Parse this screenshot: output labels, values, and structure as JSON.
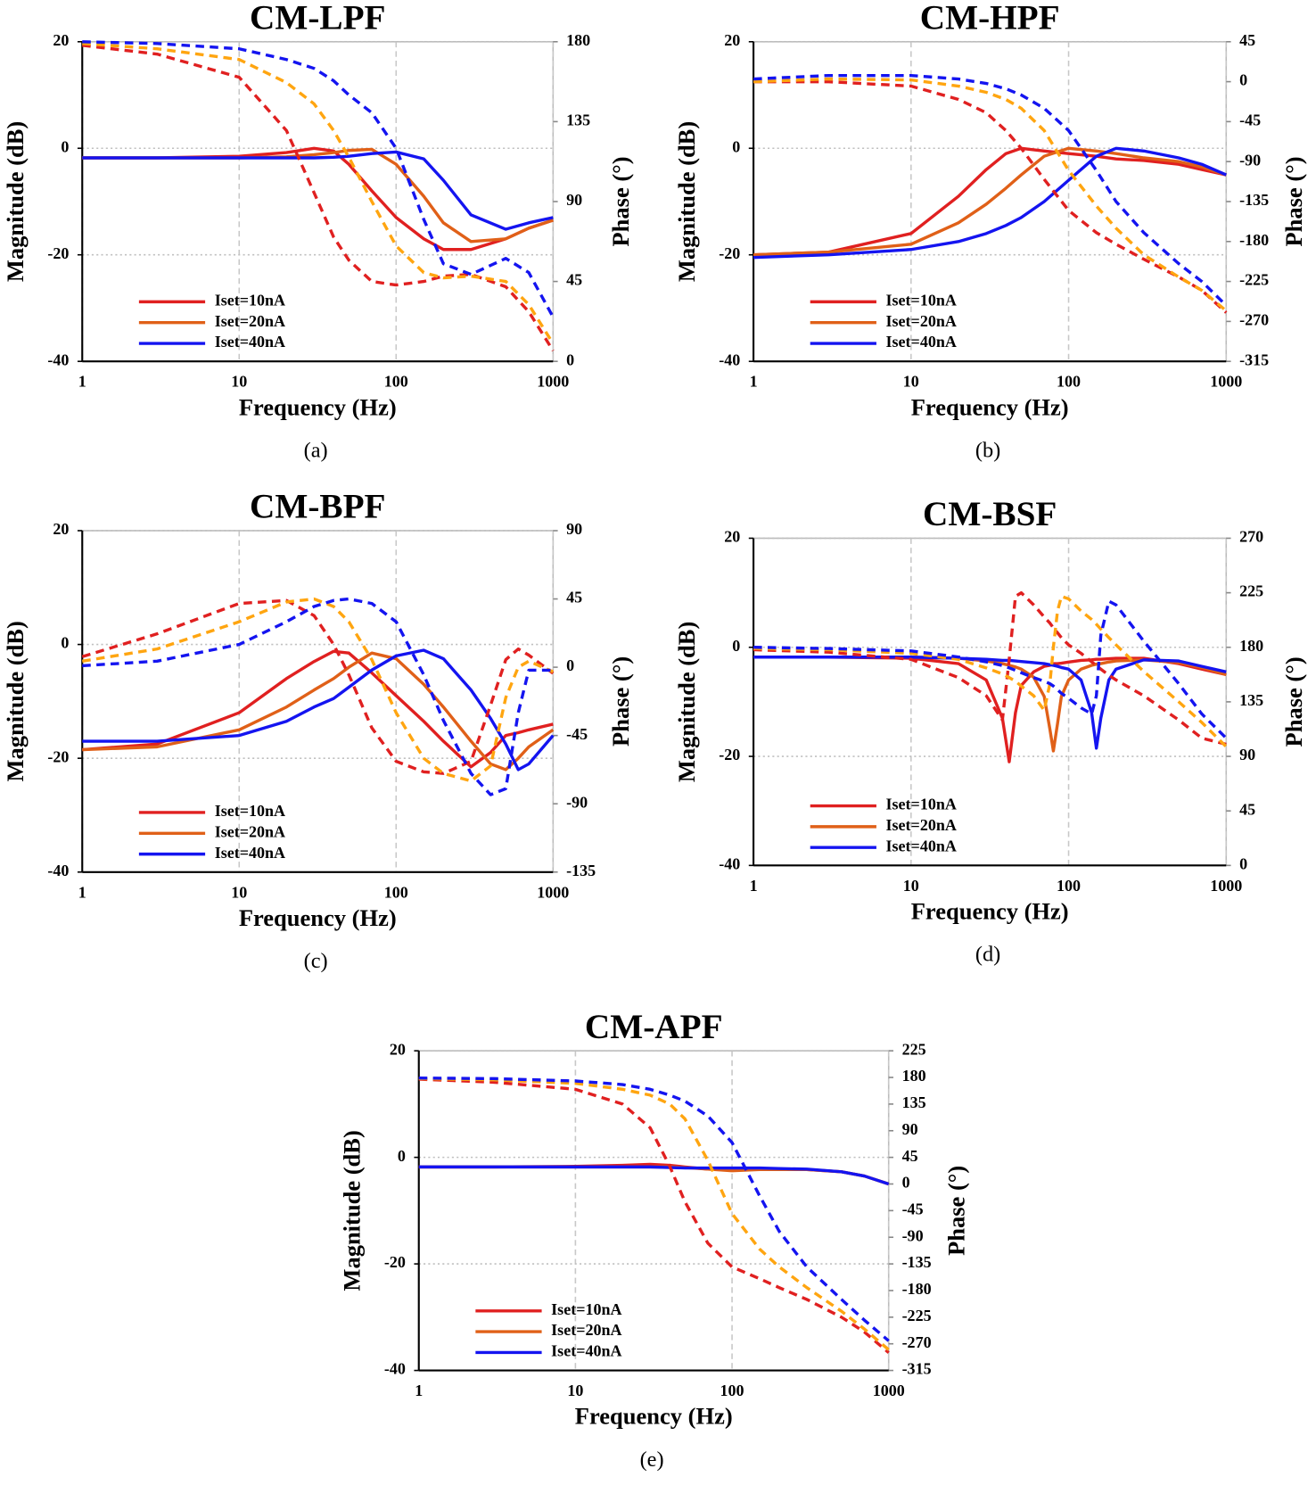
{
  "chart_data": [
    {
      "type": "line",
      "title": "CM-LPF",
      "caption": "(a)",
      "xlabel": "Frequency (Hz)",
      "ylabel": "Magnitude (dB)",
      "y2label": "Phase (°)",
      "xscale": "log",
      "xlim": [
        1,
        1000
      ],
      "xticks": [
        1,
        10,
        100,
        1000
      ],
      "ylim": [
        -40,
        20
      ],
      "yticks": [
        -40,
        -20,
        0,
        20
      ],
      "y2lim": [
        0,
        180
      ],
      "y2ticks": [
        0,
        45,
        90,
        135,
        180
      ],
      "grid": true,
      "legend": "lower left",
      "x": [
        1,
        3,
        10,
        20,
        30,
        40,
        50,
        70,
        100,
        150,
        200,
        300,
        500,
        700,
        1000
      ],
      "series": [
        {
          "name": "Iset=10nA",
          "color": "#e02020",
          "style": "solid",
          "values": [
            -1.8,
            -1.8,
            -1.5,
            -0.8,
            0,
            -0.5,
            -3,
            -8,
            -13,
            -17,
            -19,
            -19,
            -17,
            -15,
            -13.5
          ]
        },
        {
          "name": "Iset=20nA",
          "color": "#e06018",
          "style": "solid",
          "values": [
            -1.8,
            -1.8,
            -1.8,
            -1.6,
            -1.2,
            -0.8,
            -0.4,
            -0.2,
            -3,
            -9,
            -14,
            -17.5,
            -17,
            -15,
            -13.5
          ]
        },
        {
          "name": "Iset=40nA",
          "color": "#1414f0",
          "style": "solid",
          "values": [
            -1.8,
            -1.8,
            -1.8,
            -1.8,
            -1.8,
            -1.7,
            -1.5,
            -1,
            -0.7,
            -2,
            -6,
            -12.5,
            -15.2,
            -14,
            -13
          ]
        },
        {
          "color": "#e02020",
          "style": "dashed",
          "axis": "y2",
          "values": [
            178,
            173,
            160,
            130,
            95,
            70,
            57,
            45,
            43,
            45,
            48,
            49,
            42,
            28,
            6
          ]
        },
        {
          "color": "#ffa510",
          "style": "dashed",
          "axis": "y2",
          "values": [
            179,
            176,
            170,
            157,
            145,
            130,
            115,
            90,
            65,
            50,
            47,
            48,
            45,
            32,
            10
          ]
        },
        {
          "color": "#1414f0",
          "style": "dashed",
          "axis": "y2",
          "values": [
            180,
            179,
            176,
            170,
            165,
            158,
            150,
            140,
            120,
            80,
            55,
            49,
            58,
            50,
            25
          ]
        }
      ]
    },
    {
      "type": "line",
      "title": "CM-HPF",
      "caption": "(b)",
      "xlabel": "Frequency (Hz)",
      "ylabel": "Magnitude (dB)",
      "y2label": "Phase (°)",
      "xscale": "log",
      "xlim": [
        1,
        1000
      ],
      "xticks": [
        1,
        10,
        100,
        1000
      ],
      "ylim": [
        -40,
        20
      ],
      "yticks": [
        -40,
        -20,
        0,
        20
      ],
      "y2lim": [
        -315,
        45
      ],
      "y2ticks": [
        -315,
        -270,
        -225,
        -180,
        -135,
        -90,
        -45,
        0,
        45
      ],
      "grid": true,
      "legend": "lower left",
      "x": [
        1,
        3,
        10,
        20,
        30,
        40,
        50,
        70,
        100,
        150,
        200,
        300,
        500,
        700,
        1000
      ],
      "series": [
        {
          "name": "Iset=10nA",
          "color": "#e02020",
          "style": "solid",
          "values": [
            -20,
            -19.5,
            -16,
            -9,
            -4,
            -1,
            0,
            -0.5,
            -1,
            -1.5,
            -2,
            -2.3,
            -3,
            -4,
            -5
          ]
        },
        {
          "name": "Iset=20nA",
          "color": "#e06018",
          "style": "solid",
          "values": [
            -20,
            -19.5,
            -18,
            -14,
            -10.5,
            -7.5,
            -5,
            -1.5,
            0,
            -0.5,
            -1,
            -1.8,
            -2.5,
            -3.5,
            -5
          ]
        },
        {
          "name": "Iset=40nA",
          "color": "#1414f0",
          "style": "solid",
          "values": [
            -20.5,
            -20,
            -19,
            -17.5,
            -16,
            -14.5,
            -13,
            -10,
            -6,
            -1.5,
            0,
            -0.5,
            -1.8,
            -3,
            -5
          ]
        },
        {
          "color": "#e02020",
          "style": "dashed",
          "axis": "y2",
          "values": [
            0,
            0,
            -5,
            -20,
            -35,
            -55,
            -75,
            -110,
            -145,
            -170,
            -183,
            -200,
            -220,
            -235,
            -260
          ]
        },
        {
          "color": "#ffa510",
          "style": "dashed",
          "axis": "y2",
          "values": [
            0,
            3,
            2,
            -5,
            -12,
            -20,
            -30,
            -55,
            -100,
            -140,
            -165,
            -195,
            -220,
            -235,
            -258
          ]
        },
        {
          "color": "#1414f0",
          "style": "dashed",
          "axis": "y2",
          "values": [
            3,
            7,
            7,
            3,
            -2,
            -8,
            -15,
            -30,
            -55,
            -100,
            -135,
            -170,
            -205,
            -225,
            -252
          ]
        }
      ]
    },
    {
      "type": "line",
      "title": "CM-BPF",
      "caption": "(c)",
      "xlabel": "Frequency (Hz)",
      "ylabel": "Magnitude (dB)",
      "y2label": "Phase (°)",
      "xscale": "log",
      "xlim": [
        1,
        1000
      ],
      "xticks": [
        1,
        10,
        100,
        1000
      ],
      "ylim": [
        -40,
        20
      ],
      "yticks": [
        -40,
        -20,
        0,
        20
      ],
      "y2lim": [
        -135,
        90
      ],
      "y2ticks": [
        -135,
        -90,
        -45,
        0,
        45,
        90
      ],
      "grid": true,
      "legend": "lower left",
      "x": [
        1,
        3,
        10,
        20,
        30,
        40,
        50,
        70,
        100,
        150,
        200,
        300,
        400,
        500,
        600,
        700,
        1000
      ],
      "series": [
        {
          "name": "Iset=10nA",
          "color": "#e02020",
          "style": "solid",
          "values": [
            -18.5,
            -17.5,
            -12,
            -6,
            -3,
            -1.2,
            -1.5,
            -5,
            -9,
            -13.5,
            -17,
            -21.5,
            -19,
            -16,
            -15.5,
            -15,
            -14
          ]
        },
        {
          "name": "Iset=20nA",
          "color": "#e06018",
          "style": "solid",
          "values": [
            -18.5,
            -18,
            -15,
            -11,
            -8,
            -6,
            -4,
            -1.5,
            -2.5,
            -7,
            -11,
            -17,
            -21,
            -22,
            -20,
            -18,
            -15
          ]
        },
        {
          "name": "Iset=40nA",
          "color": "#1414f0",
          "style": "solid",
          "values": [
            -17,
            -17,
            -16,
            -13.5,
            -11,
            -9.5,
            -7.5,
            -4.5,
            -2,
            -1,
            -2.5,
            -8,
            -13,
            -17.5,
            -22,
            -21,
            -16
          ]
        },
        {
          "color": "#e02020",
          "style": "dashed",
          "axis": "y2",
          "values": [
            7,
            22,
            42,
            44,
            34,
            15,
            -5,
            -40,
            -62,
            -69,
            -70,
            -62,
            -25,
            5,
            12,
            8,
            -4
          ]
        },
        {
          "color": "#ffa510",
          "style": "dashed",
          "axis": "y2",
          "values": [
            4,
            12,
            30,
            43,
            45,
            40,
            30,
            5,
            -30,
            -60,
            -70,
            -75,
            -65,
            -20,
            0,
            4,
            -3
          ]
        },
        {
          "color": "#1414f0",
          "style": "dashed",
          "axis": "y2",
          "values": [
            1,
            4,
            15,
            30,
            40,
            44,
            45,
            42,
            30,
            -5,
            -35,
            -70,
            -84,
            -80,
            -30,
            -2,
            -2
          ]
        }
      ]
    },
    {
      "type": "line",
      "title": "CM-BSF",
      "caption": "(d)",
      "xlabel": "Frequency (Hz)",
      "ylabel": "Magnitude (dB)",
      "y2label": "Phase (°)",
      "xscale": "log",
      "xlim": [
        1,
        1000
      ],
      "xticks": [
        1,
        10,
        100,
        1000
      ],
      "ylim": [
        -40,
        20
      ],
      "yticks": [
        -40,
        -20,
        0,
        20
      ],
      "y2lim": [
        0,
        270
      ],
      "y2ticks": [
        0,
        45,
        90,
        135,
        180,
        225,
        270
      ],
      "grid": true,
      "legend": "lower left",
      "x": [
        1,
        3,
        10,
        20,
        30,
        38,
        42,
        46,
        50,
        60,
        70,
        76,
        80,
        85,
        90,
        100,
        120,
        140,
        150,
        160,
        180,
        200,
        300,
        500,
        700,
        1000
      ],
      "series": [
        {
          "name": "Iset=10nA",
          "color": "#e02020",
          "style": "solid",
          "values": [
            -1.8,
            -1.8,
            -2,
            -3,
            -6,
            -13,
            -21,
            -12,
            -7,
            -4.5,
            -3.5,
            -3.3,
            -3,
            -3,
            -2.9,
            -2.7,
            -2.4,
            -2.3,
            -2.2,
            -2.2,
            -2.1,
            -2,
            -2,
            -3,
            -4,
            -5
          ]
        },
        {
          "name": "Iset=20nA",
          "color": "#e06018",
          "style": "solid",
          "values": [
            -1.8,
            -1.8,
            -1.8,
            -2,
            -2.5,
            -3,
            -3.3,
            -3.6,
            -4,
            -5.5,
            -9,
            -15,
            -19,
            -14,
            -9,
            -6,
            -4,
            -3.3,
            -3.1,
            -3,
            -2.7,
            -2.5,
            -2.3,
            -2.8,
            -3.7,
            -5
          ]
        },
        {
          "name": "Iset=40nA",
          "color": "#1414f0",
          "style": "solid",
          "values": [
            -1.8,
            -1.8,
            -1.8,
            -2,
            -2.2,
            -2.4,
            -2.4,
            -2.5,
            -2.6,
            -2.8,
            -3,
            -3.2,
            -3.3,
            -3.5,
            -3.7,
            -4,
            -6,
            -12,
            -18.5,
            -13,
            -6,
            -4,
            -2.3,
            -2.5,
            -3.5,
            -4.5
          ]
        },
        {
          "color": "#e02020",
          "style": "dashed",
          "axis": "y2",
          "values": [
            178,
            176,
            170,
            155,
            140,
            120,
            170,
            222,
            225,
            215,
            205,
            200,
            196,
            192,
            188,
            182,
            175,
            168,
            165,
            162,
            157,
            153,
            140,
            120,
            105,
            100
          ]
        },
        {
          "color": "#ffa510",
          "style": "dashed",
          "axis": "y2",
          "values": [
            179,
            178,
            175,
            170,
            163,
            158,
            155,
            152,
            148,
            140,
            128,
            150,
            180,
            210,
            222,
            220,
            210,
            203,
            199,
            195,
            188,
            182,
            160,
            135,
            118,
            98
          ]
        },
        {
          "color": "#1414f0",
          "style": "dashed",
          "axis": "y2",
          "values": [
            180,
            179,
            177,
            172,
            168,
            165,
            163,
            161,
            159,
            155,
            152,
            150,
            148,
            145,
            142,
            138,
            130,
            125,
            140,
            190,
            218,
            215,
            185,
            150,
            125,
            105
          ]
        }
      ]
    },
    {
      "type": "line",
      "title": "CM-APF",
      "caption": "(e)",
      "xlabel": "Frequency (Hz)",
      "ylabel": "Magnitude (dB)",
      "y2label": "Phase (°)",
      "xscale": "log",
      "xlim": [
        1,
        1000
      ],
      "xticks": [
        1,
        10,
        100,
        1000
      ],
      "ylim": [
        -40,
        20
      ],
      "yticks": [
        -40,
        -20,
        0,
        20
      ],
      "y2lim": [
        -315,
        225
      ],
      "y2ticks": [
        -315,
        -270,
        -225,
        -180,
        -135,
        -90,
        -45,
        0,
        45,
        90,
        135,
        180,
        225
      ],
      "grid": true,
      "legend": "lower left",
      "x": [
        1,
        3,
        10,
        20,
        30,
        40,
        50,
        70,
        100,
        150,
        200,
        300,
        500,
        700,
        1000
      ],
      "series": [
        {
          "name": "Iset=10nA",
          "color": "#e02020",
          "style": "solid",
          "values": [
            -1.8,
            -1.8,
            -1.7,
            -1.5,
            -1.3,
            -1.5,
            -1.8,
            -2.2,
            -2.3,
            -2.3,
            -2.3,
            -2.3,
            -2.7,
            -3.5,
            -5
          ]
        },
        {
          "name": "Iset=20nA",
          "color": "#e06018",
          "style": "solid",
          "values": [
            -1.8,
            -1.8,
            -1.8,
            -1.8,
            -1.8,
            -1.8,
            -1.9,
            -2.2,
            -2.5,
            -2.3,
            -2.3,
            -2.3,
            -2.7,
            -3.5,
            -5
          ]
        },
        {
          "name": "Iset=40nA",
          "color": "#1414f0",
          "style": "solid",
          "values": [
            -1.8,
            -1.8,
            -1.8,
            -1.8,
            -1.8,
            -1.9,
            -2,
            -2,
            -2,
            -2,
            -2.1,
            -2.2,
            -2.7,
            -3.5,
            -5
          ]
        },
        {
          "color": "#e02020",
          "style": "dashed",
          "axis": "y2",
          "values": [
            177,
            172,
            160,
            135,
            95,
            30,
            -30,
            -100,
            -140,
            -160,
            -175,
            -195,
            -225,
            -250,
            -285
          ]
        },
        {
          "color": "#ffa510",
          "style": "dashed",
          "axis": "y2",
          "values": [
            178,
            176,
            170,
            160,
            150,
            135,
            110,
            40,
            -50,
            -110,
            -140,
            -175,
            -215,
            -245,
            -280
          ]
        },
        {
          "color": "#1414f0",
          "style": "dashed",
          "axis": "y2",
          "values": [
            179,
            178,
            174,
            168,
            160,
            150,
            140,
            115,
            70,
            -20,
            -80,
            -140,
            -195,
            -230,
            -265
          ]
        }
      ]
    }
  ]
}
